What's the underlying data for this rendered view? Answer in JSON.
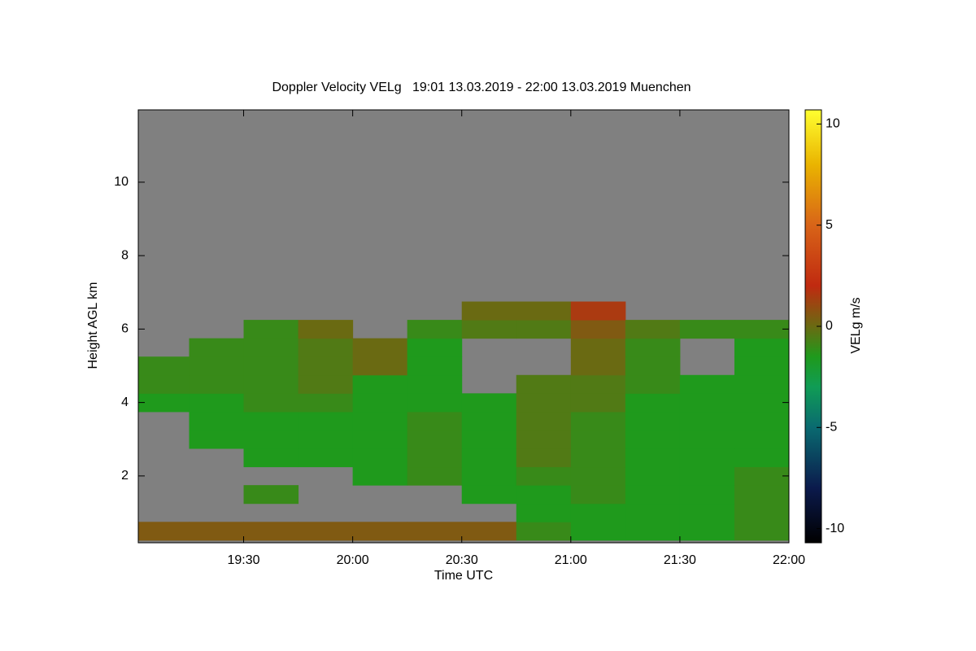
{
  "chart_data": {
    "type": "heatmap",
    "title": "Doppler Velocity VELg   19:01 13.03.2019 - 22:00 13.03.2019 Muenchen",
    "x_label": "Time UTC",
    "y_label": "Height AGL km",
    "colorbar_label": "VELg m/s",
    "xlim": [
      19.017,
      22.0
    ],
    "xticks": [
      {
        "value": 19.5,
        "label": "19:30"
      },
      {
        "value": 20.0,
        "label": "20:00"
      },
      {
        "value": 20.5,
        "label": "20:30"
      },
      {
        "value": 21.0,
        "label": "21:00"
      },
      {
        "value": 21.5,
        "label": "21:30"
      },
      {
        "value": 22.0,
        "label": "22:00"
      }
    ],
    "ylim": [
      0.18,
      11.97
    ],
    "yticks": [
      2,
      4,
      6,
      8,
      10
    ],
    "clim": [
      -10.7,
      10.7
    ],
    "cticks": [
      -10,
      -5,
      0,
      5,
      10
    ],
    "background": "#808080",
    "colormap": [
      [
        -10.7,
        "#000000"
      ],
      [
        -8,
        "#0b1a4c"
      ],
      [
        -5,
        "#0a6a70"
      ],
      [
        -3,
        "#109c55"
      ],
      [
        -1.5,
        "#1f9a1c"
      ],
      [
        0,
        "#6a6a12"
      ],
      [
        2,
        "#c02a10"
      ],
      [
        5,
        "#d86418"
      ],
      [
        8,
        "#eab400"
      ],
      [
        10.7,
        "#ffff30"
      ]
    ],
    "x": [
      19.125,
      19.375,
      19.625,
      19.875,
      20.125,
      20.375,
      20.625,
      20.875,
      21.125,
      21.375,
      21.625,
      21.875
    ],
    "y": [
      0.5,
      1.0,
      1.5,
      2.0,
      2.5,
      3.0,
      3.5,
      4.0,
      4.5,
      5.0,
      5.5,
      6.0,
      6.5
    ],
    "z": [
      [
        0.5,
        0.5,
        0.5,
        0.5,
        0.5,
        0.5,
        0.5,
        -1,
        -1.5,
        -1.5,
        -1.5,
        -1
      ],
      [
        null,
        null,
        null,
        null,
        null,
        null,
        null,
        -1.5,
        -1.5,
        -1.5,
        -1.5,
        -1
      ],
      [
        null,
        null,
        -1,
        null,
        null,
        null,
        -1.5,
        -1.5,
        -1,
        -1.5,
        -1.5,
        -1
      ],
      [
        null,
        null,
        null,
        null,
        -1.5,
        -1,
        -1.5,
        -1,
        -1,
        -1.5,
        -1.5,
        -1
      ],
      [
        null,
        null,
        -1.5,
        -1.5,
        -1.5,
        -1,
        -1.5,
        -0.5,
        -1,
        -1.5,
        -1.5,
        -1.5
      ],
      [
        null,
        -1.5,
        -1.5,
        -1.5,
        -1.5,
        -1,
        -1.5,
        -0.5,
        -1,
        -1.5,
        -1.5,
        -1.5
      ],
      [
        null,
        -1.5,
        -1.5,
        -1.5,
        -1.5,
        -1,
        -1.5,
        -0.5,
        -1,
        -1.5,
        -1.5,
        -1.5
      ],
      [
        -1.5,
        -1.5,
        -1,
        -1,
        -1.5,
        -1.5,
        -1.5,
        -0.5,
        -0.5,
        -1.5,
        -1.5,
        -1.5
      ],
      [
        -1,
        -1,
        -1,
        -0.5,
        -1.5,
        -1.5,
        null,
        -0.5,
        -0.5,
        -1,
        -1.5,
        -1.5
      ],
      [
        -1,
        -1,
        -1,
        -0.5,
        0,
        -1.5,
        null,
        null,
        0,
        -1,
        null,
        -1.5
      ],
      [
        null,
        -1,
        -1,
        -0.5,
        0,
        -1.5,
        null,
        null,
        0,
        -1,
        null,
        -1.5
      ],
      [
        null,
        null,
        -1,
        0,
        null,
        -1,
        -0.5,
        -0.5,
        0.5,
        -0.5,
        -1,
        -1
      ],
      [
        null,
        null,
        null,
        null,
        null,
        null,
        0,
        0,
        1.5,
        null,
        null,
        null
      ]
    ]
  }
}
